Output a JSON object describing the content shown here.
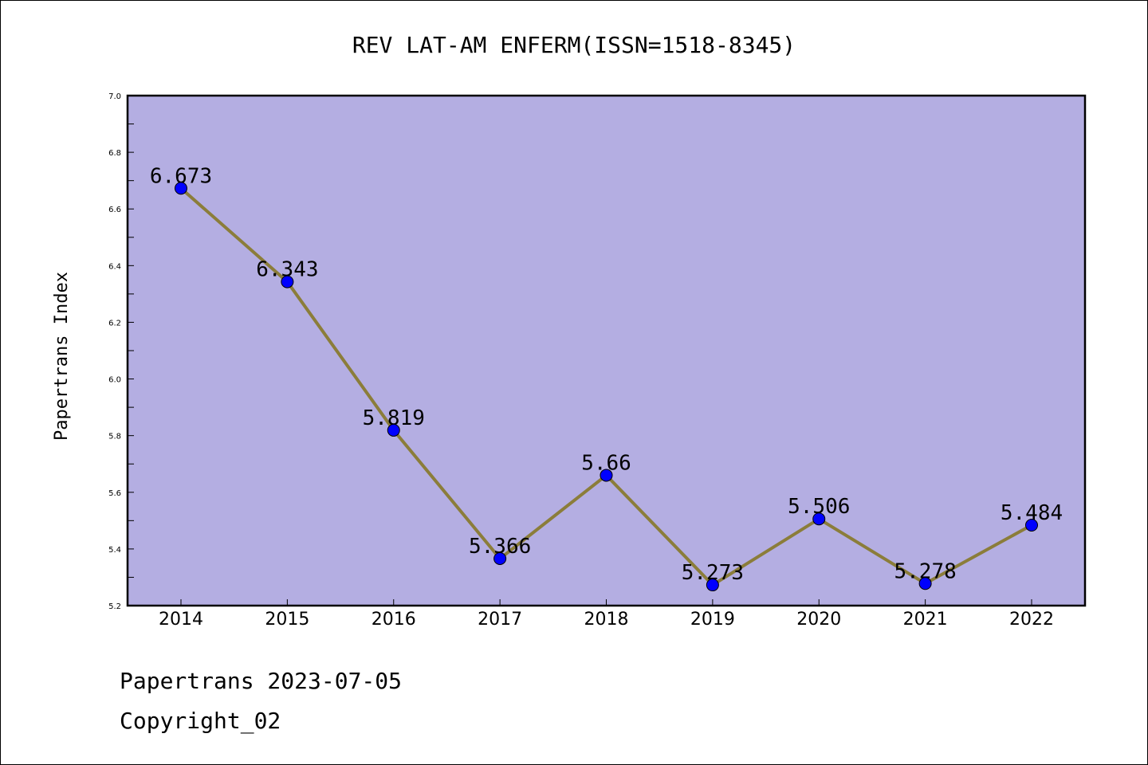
{
  "footer": {
    "line1": "Papertrans 2023-07-05",
    "line2": "Copyright_02"
  },
  "chart_data": {
    "type": "line",
    "title": "REV LAT-AM ENFERM(ISSN=1518-8345)",
    "xlabel": "",
    "ylabel": "Papertrans Index",
    "categories": [
      "2014",
      "2015",
      "2016",
      "2017",
      "2018",
      "2019",
      "2020",
      "2021",
      "2022"
    ],
    "values": [
      6.673,
      6.343,
      5.819,
      5.366,
      5.66,
      5.273,
      5.506,
      5.278,
      5.484
    ],
    "data_labels": [
      "6.673",
      "6.343",
      "5.819",
      "5.366",
      "5.66",
      "5.273",
      "5.506",
      "5.278",
      "5.484"
    ],
    "ylim": [
      5.2,
      7.0
    ],
    "yticks": [
      "5.2",
      "5.4",
      "5.6",
      "5.8",
      "6.0",
      "6.2",
      "6.4",
      "6.6",
      "6.8",
      "7.0"
    ],
    "grid": false,
    "legend": "none",
    "colors": {
      "plot_background": "#b4aee2",
      "line": "#8b7d3a",
      "marker": "#0000ff"
    }
  }
}
